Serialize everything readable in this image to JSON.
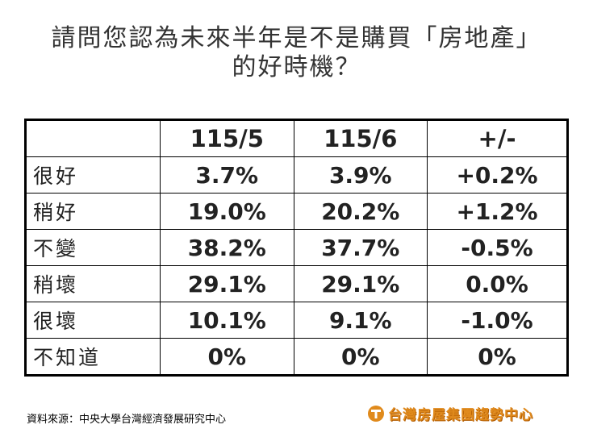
{
  "header": {
    "title_lines": [
      "請問您認為未來半年是不是購買「房地產」",
      "的好時機？"
    ]
  },
  "table": {
    "columns": [
      "115/5",
      "115/6",
      "+/-"
    ],
    "rows": [
      [
        "很好",
        "3.7%",
        "3.9%",
        "+0.2%"
      ],
      [
        "稍好",
        "19.0%",
        "20.2%",
        "+1.2%"
      ],
      [
        "不變",
        "38.2%",
        "37.7%",
        "-0.5%"
      ],
      [
        "稍壞",
        "29.1%",
        "29.1%",
        "0.0%"
      ],
      [
        "很壞",
        "10.1%",
        "9.1%",
        "-1.0%"
      ],
      [
        "不知道",
        "0%",
        "0%",
        "0%"
      ]
    ]
  },
  "footer": {
    "source": "資料來源：中央大學台灣經濟發展研究中心",
    "logo": "台灣房屋集團趨勢中心"
  }
}
